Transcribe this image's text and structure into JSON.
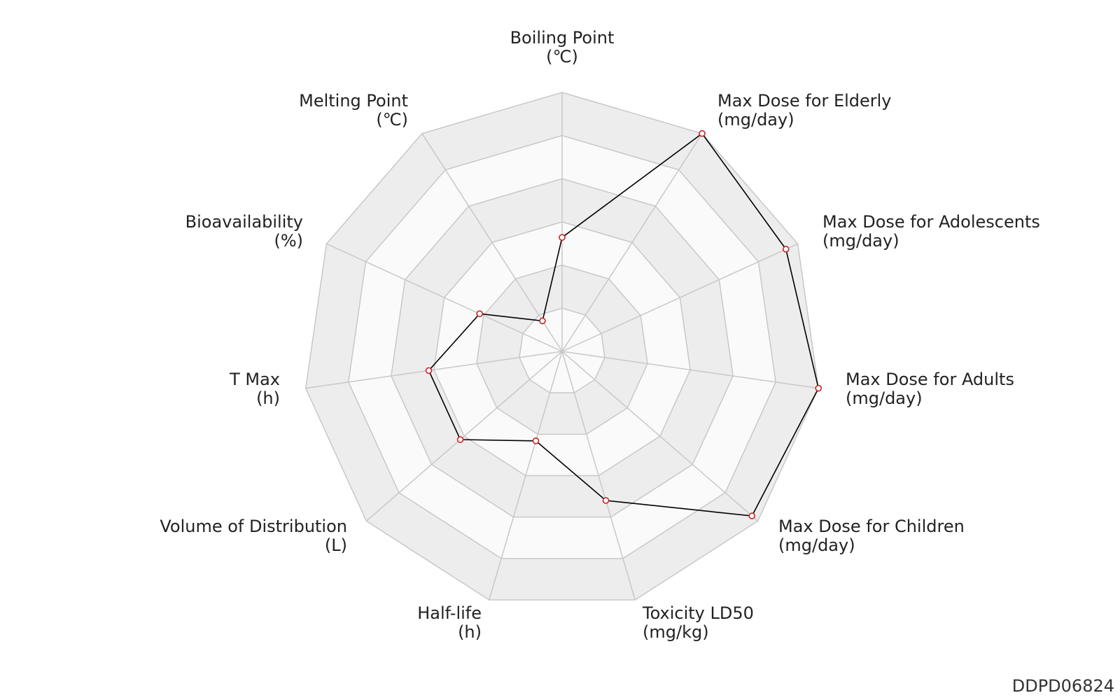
{
  "chart_data": {
    "type": "radar",
    "axes": [
      {
        "name": "Boiling Point",
        "unit": "(℃)"
      },
      {
        "name": "Max Dose for Elderly",
        "unit": "(mg/day)"
      },
      {
        "name": "Max Dose for Adolescents",
        "unit": "(mg/day)"
      },
      {
        "name": "Max Dose for Adults",
        "unit": "(mg/day)"
      },
      {
        "name": "Max Dose for Children",
        "unit": "(mg/day)"
      },
      {
        "name": "Toxicity LD50",
        "unit": "(mg/kg)"
      },
      {
        "name": "Half-life",
        "unit": "(h)"
      },
      {
        "name": "Volume of Distribution",
        "unit": "(L)"
      },
      {
        "name": "T Max",
        "unit": "(h)"
      },
      {
        "name": "Bioavailability",
        "unit": "(%)"
      },
      {
        "name": "Melting Point",
        "unit": "(℃)"
      }
    ],
    "series": [
      {
        "values": [
          0.44,
          1.0,
          0.95,
          1.0,
          0.97,
          0.6,
          0.36,
          0.52,
          0.52,
          0.35,
          0.14
        ]
      }
    ],
    "rings": 6,
    "range": [
      0,
      1
    ],
    "colors": {
      "line": "#000000",
      "marker_stroke": "#cc2222",
      "marker_fill": "#ffffff",
      "grid": "#c8c8c8",
      "band_shaded": "#ededed",
      "band_light": "#fafafa"
    }
  },
  "watermark": "DDPD06824"
}
